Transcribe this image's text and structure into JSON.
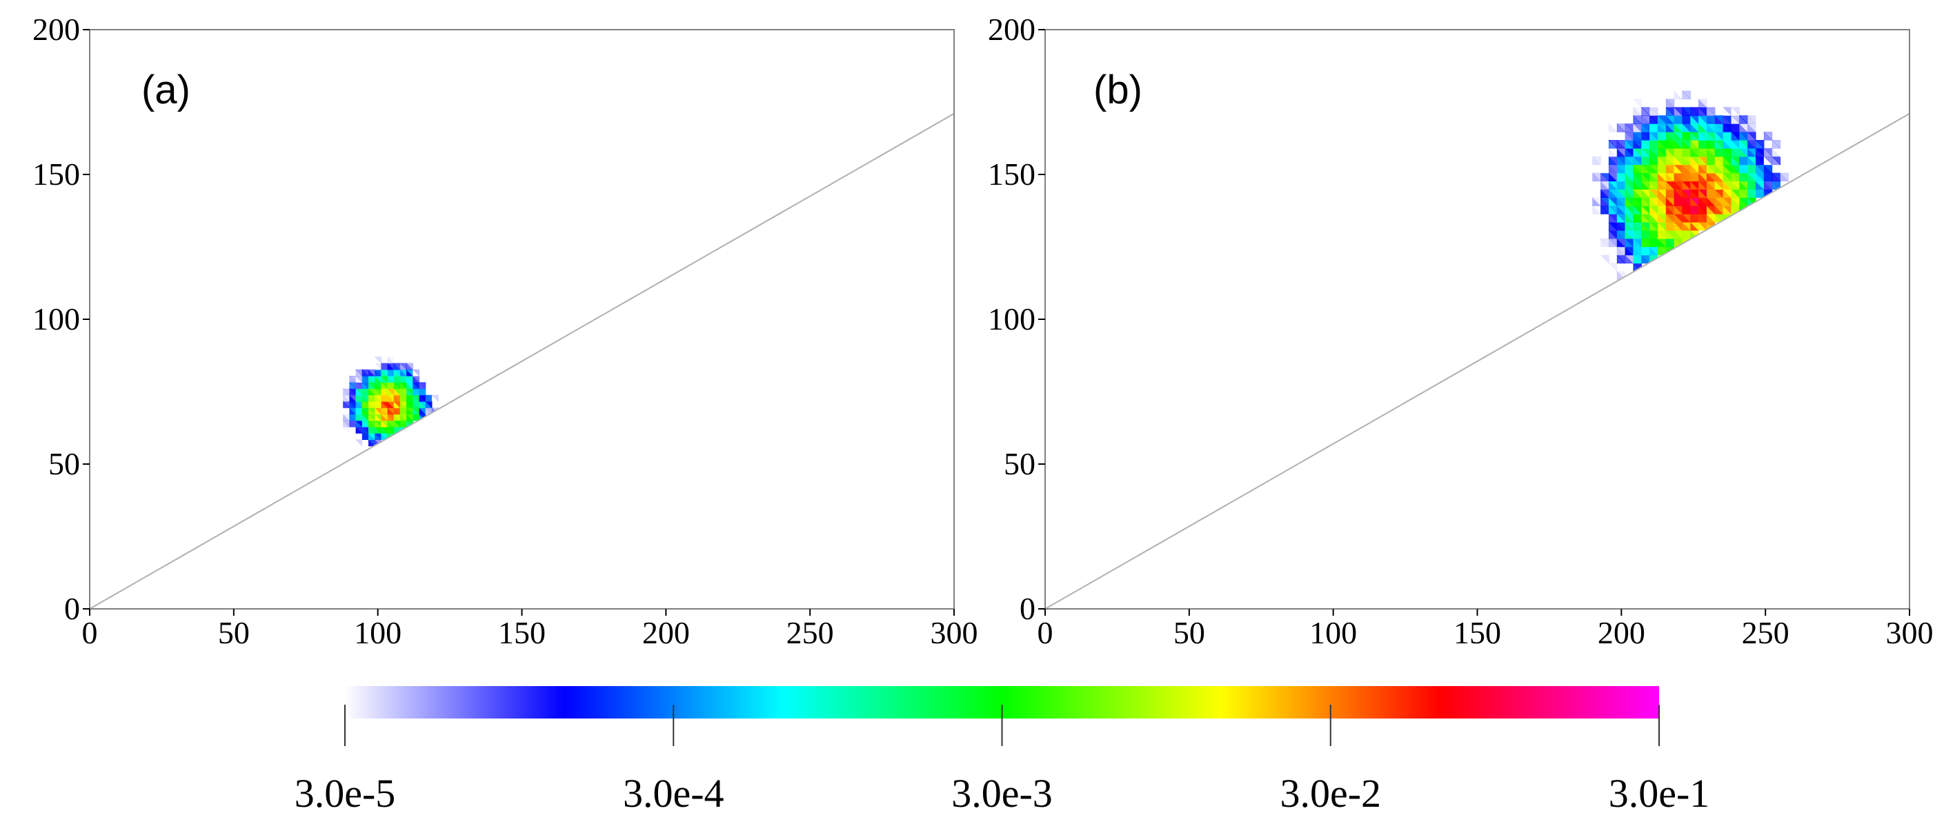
{
  "chart_data": [
    {
      "type": "heatmap",
      "panel_label": "(a)",
      "xlim": [
        0,
        300
      ],
      "ylim": [
        0,
        200
      ],
      "x_ticks": [
        0,
        50,
        100,
        150,
        200,
        250,
        300
      ],
      "y_ticks": [
        0,
        50,
        100,
        150,
        200
      ],
      "x_tick_labels": [
        "0",
        "50",
        "100",
        "150",
        "200",
        "250",
        "300"
      ],
      "y_tick_labels": [
        "0",
        "50",
        "100",
        "150",
        "200"
      ],
      "slope_line": {
        "x": [
          0,
          300
        ],
        "y": [
          0,
          171
        ]
      },
      "blob": {
        "center": [
          104,
          70
        ],
        "radius": 16,
        "peak_log_intensity": -1.4,
        "base": "slope_line"
      }
    },
    {
      "type": "heatmap",
      "panel_label": "(b)",
      "xlim": [
        0,
        300
      ],
      "ylim": [
        0,
        200
      ],
      "x_ticks": [
        0,
        50,
        100,
        150,
        200,
        250,
        300
      ],
      "y_ticks": [
        0,
        50,
        100,
        150,
        200
      ],
      "x_tick_labels": [
        "0",
        "50",
        "100",
        "150",
        "200",
        "250",
        "300"
      ],
      "y_tick_labels": [
        "0",
        "50",
        "100",
        "150",
        "200"
      ],
      "slope_line": {
        "x": [
          0,
          300
        ],
        "y": [
          0,
          171
        ]
      },
      "blob": {
        "center": [
          224,
          142
        ],
        "radius": 34,
        "peak_log_intensity": -1.1,
        "base": "slope_line"
      }
    }
  ],
  "colorbar": {
    "scale": "log",
    "range": [
      3e-05,
      0.3
    ],
    "tick_labels": [
      "3.0e-5",
      "3.0e-4",
      "3.0e-3",
      "3.0e-2",
      "3.0e-1"
    ],
    "stops": [
      "#ffffff",
      "#0000ff",
      "#00ffff",
      "#00ff00",
      "#ffff00",
      "#ff0000",
      "#ff00ff"
    ]
  }
}
